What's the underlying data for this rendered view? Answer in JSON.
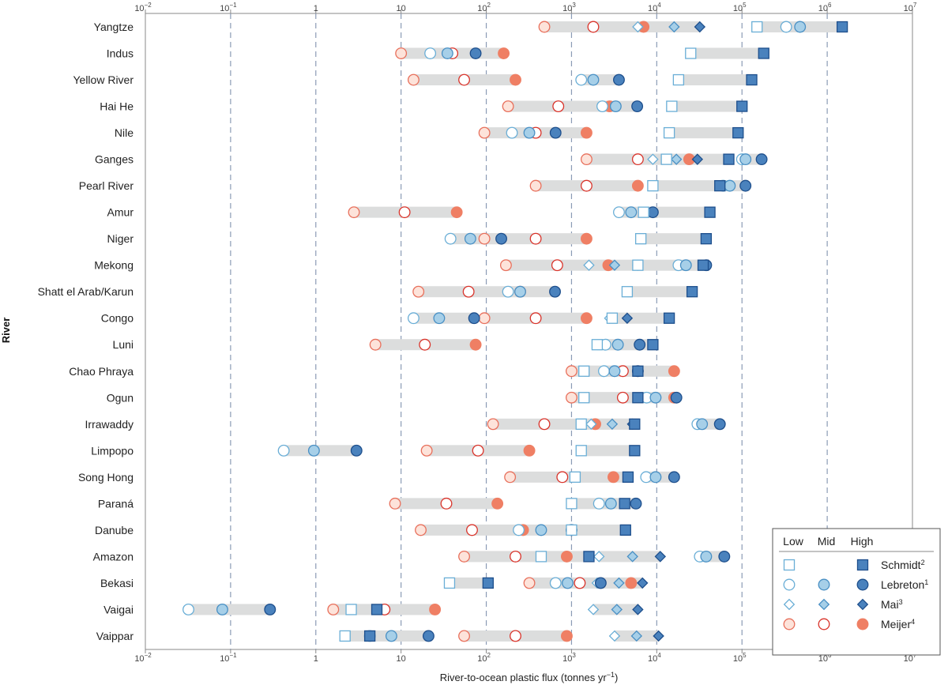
{
  "chart_data": {
    "type": "range-dot-plot",
    "xlabel": "River-to-ocean plastic flux (tonnes yr",
    "xlabel_sup": "−1",
    "xlabel_end": ")",
    "ylabel": "River",
    "xscale": "log",
    "xlim": [
      0.01,
      10000000
    ],
    "ticks": [
      {
        "value": 0.01,
        "base": "10",
        "exp": "−2"
      },
      {
        "value": 0.1,
        "base": "10",
        "exp": "−1"
      },
      {
        "value": 1,
        "base": "1",
        "exp": ""
      },
      {
        "value": 10,
        "base": "10",
        "exp": ""
      },
      {
        "value": 100,
        "base": "10",
        "exp": "2"
      },
      {
        "value": 1000,
        "base": "10",
        "exp": "3"
      },
      {
        "value": 10000,
        "base": "10",
        "exp": "4"
      },
      {
        "value": 100000,
        "base": "10",
        "exp": "5"
      },
      {
        "value": 1000000,
        "base": "10",
        "exp": "6"
      },
      {
        "value": 10000000,
        "base": "10",
        "exp": "7"
      }
    ],
    "legend": {
      "headers": [
        "Low",
        "Mid",
        "High"
      ],
      "placement": "bottom-right",
      "entries": [
        {
          "key": "schmidt",
          "label": "Schmidt",
          "sup": "2",
          "shape": "square"
        },
        {
          "key": "lebreton",
          "label": "Lebreton",
          "sup": "1",
          "shape": "circle"
        },
        {
          "key": "mai",
          "label": "Mai",
          "sup": "3",
          "shape": "diamond"
        },
        {
          "key": "meijer",
          "label": "Meijer",
          "sup": "4",
          "shape": "circle"
        }
      ]
    },
    "colors": {
      "blue_low_fill": "#ffffff",
      "blue_low_stroke": "#6aaed6",
      "blue_mid_fill": "#a6cfe8",
      "blue_mid_stroke": "#4a90c4",
      "blue_high_fill": "#4a82bd",
      "blue_high_stroke": "#1e4f8c",
      "red_low_fill": "#fde3da",
      "red_low_stroke": "#e8705c",
      "red_mid_fill": "#ffffff",
      "red_mid_stroke": "#d9342b",
      "red_high_fill": "#ef7f64",
      "red_high_stroke": "#ef7f64",
      "range_bar": "#dcdddd",
      "gridline": "#8b9bb5"
    },
    "rivers": [
      {
        "name": "Yangtze",
        "schmidt": [
          150000,
          1500000
        ],
        "lebreton": [
          330000,
          480000
        ],
        "mai": [
          6000,
          16000,
          32000
        ],
        "meijer": [
          480,
          1800,
          7000
        ]
      },
      {
        "name": "Indus",
        "schmidt": [
          25000,
          180000
        ],
        "lebreton": [
          22,
          35,
          75
        ],
        "meijer": [
          10,
          40,
          160
        ]
      },
      {
        "name": "Yellow River",
        "schmidt": [
          18000,
          130000
        ],
        "lebreton": [
          1300,
          1800,
          3600
        ],
        "meijer": [
          14,
          55,
          220
        ]
      },
      {
        "name": "Hai He",
        "schmidt": [
          15000,
          100000
        ],
        "lebreton": [
          2300,
          3300,
          5900
        ],
        "meijer": [
          180,
          700,
          2800
        ]
      },
      {
        "name": "Nile",
        "schmidt": [
          14000,
          90000
        ],
        "lebreton": [
          200,
          320,
          650
        ],
        "meijer": [
          95,
          380,
          1500
        ]
      },
      {
        "name": "Ganges",
        "schmidt": [
          13000,
          70000
        ],
        "lebreton": [
          100000,
          110000,
          170000
        ],
        "mai": [
          9000,
          17000,
          30000
        ],
        "meijer": [
          1500,
          6000,
          24000
        ]
      },
      {
        "name": "Pearl River",
        "schmidt": [
          9000,
          55000
        ],
        "lebreton": [
          60000,
          72000,
          110000
        ],
        "meijer": [
          380,
          1500,
          6000
        ]
      },
      {
        "name": "Amur",
        "schmidt": [
          7000,
          42000
        ],
        "lebreton": [
          3600,
          5000,
          9000
        ],
        "meijer": [
          2.8,
          11,
          45
        ]
      },
      {
        "name": "Niger",
        "schmidt": [
          6500,
          38000
        ],
        "lebreton": [
          38,
          65,
          150
        ],
        "meijer": [
          95,
          380,
          1500
        ]
      },
      {
        "name": "Mekong",
        "schmidt": [
          6000,
          35000
        ],
        "lebreton": [
          18000,
          22000,
          38000
        ],
        "mai": [
          1600,
          3200,
          6000
        ],
        "meijer": [
          170,
          680,
          2700
        ]
      },
      {
        "name": "Shatt el Arab/Karun",
        "schmidt": [
          4500,
          26000
        ],
        "lebreton": [
          180,
          250,
          640
        ],
        "meijer": [
          16,
          62,
          250
        ]
      },
      {
        "name": "Congo",
        "schmidt": [
          3000,
          14000
        ],
        "lebreton": [
          14,
          28,
          72
        ],
        "mai": [
          2800,
          4500
        ],
        "meijer": [
          95,
          380,
          1500
        ]
      },
      {
        "name": "Luni",
        "schmidt": [
          2000,
          9000
        ],
        "lebreton": [
          2500,
          3500,
          6300
        ],
        "meijer": [
          5,
          19,
          75
        ]
      },
      {
        "name": "Chao Phraya",
        "schmidt": [
          1400,
          6000
        ],
        "lebreton": [
          2400,
          3200,
          6000
        ],
        "meijer": [
          1000,
          4000,
          16000
        ]
      },
      {
        "name": "Ogun",
        "schmidt": [
          1400,
          6000
        ],
        "lebreton": [
          7600,
          9700,
          17000
        ],
        "meijer": [
          1000,
          4000,
          16000
        ]
      },
      {
        "name": "Irrawaddy",
        "schmidt": [
          1300,
          5500
        ],
        "lebreton": [
          30000,
          34000,
          55000
        ],
        "mai": [
          1700,
          3000,
          5200
        ],
        "meijer": [
          120,
          480,
          1900
        ]
      },
      {
        "name": "Limpopo",
        "schmidt": [
          1300,
          5500
        ],
        "lebreton": [
          0.42,
          0.95,
          3
        ],
        "meijer": [
          20,
          80,
          320
        ]
      },
      {
        "name": "Song Hong",
        "schmidt": [
          1100,
          4600
        ],
        "lebreton": [
          7500,
          9700,
          16000
        ],
        "meijer": [
          190,
          780,
          3100
        ]
      },
      {
        "name": "Paraná",
        "schmidt": [
          1000,
          4200
        ],
        "lebreton": [
          2100,
          2900,
          5700
        ],
        "meijer": [
          8.5,
          34,
          135
        ]
      },
      {
        "name": "Danube",
        "schmidt": [
          1000,
          4300
        ],
        "lebreton": [
          240,
          440,
          1000
        ],
        "meijer": [
          17,
          68,
          270
        ]
      },
      {
        "name": "Amazon",
        "schmidt": [
          440,
          1600
        ],
        "lebreton": [
          32000,
          38000,
          62000
        ],
        "mai": [
          2100,
          5200,
          11000
        ],
        "meijer": [
          55,
          220,
          880
        ]
      },
      {
        "name": "Bekasi",
        "schmidt": [
          37,
          105
        ],
        "lebreton": [
          650,
          900,
          2200
        ],
        "mai": [
          2000,
          3600,
          6800
        ],
        "meijer": [
          320,
          1250,
          5000
        ]
      },
      {
        "name": "Vaigai",
        "schmidt": [
          2.6,
          5.2
        ],
        "lebreton": [
          0.032,
          0.08,
          0.29
        ],
        "mai": [
          1800,
          3400,
          6000
        ],
        "meijer": [
          1.6,
          6.4,
          25
        ]
      },
      {
        "name": "Vaippar",
        "schmidt": [
          2.2,
          4.3
        ],
        "lebreton": [
          4.3,
          7.7,
          21
        ],
        "mai": [
          3200,
          5800,
          10500
        ],
        "meijer": [
          55,
          220,
          880
        ]
      }
    ]
  }
}
